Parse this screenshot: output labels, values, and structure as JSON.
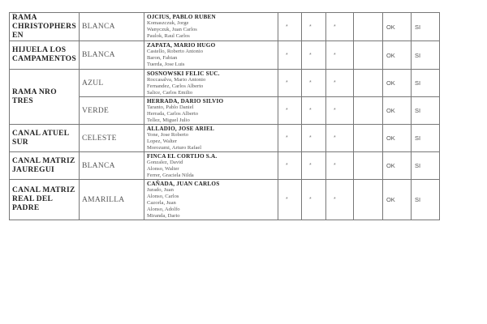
{
  "rows": [
    {
      "canal": "RAMA CHRISTOPHERS EN",
      "color": "BLANCA",
      "names": [
        "OJCIUS, PABLO RUBEN",
        "Komaszczuk, Jorge",
        "Wanyczuk, Juan Carlos",
        "Paulok, Raul Carlos"
      ],
      "marks": [
        "*",
        "*",
        "*"
      ],
      "ok": "OK",
      "si": "SI"
    },
    {
      "canal": "HIJUELA LOS CAMPAMENTOS",
      "color": "BLANCA",
      "names": [
        "ZAPATA, MARIO HUGO",
        "Castello, Roberto Antonio",
        "Baron, Fabian",
        "Tuerda, Jose Luis"
      ],
      "marks": [
        "*",
        "*",
        "*"
      ],
      "ok": "OK",
      "si": "SI"
    },
    {
      "canal": "RAMA NRO TRES",
      "color": "AZUL",
      "names": [
        "SOSNOWSKI FELIC SUC.",
        "Roccasalva, Mario Antonio",
        "Fernandez, Carlos Alberto",
        "Salice, Carlos Emilio"
      ],
      "marks": [
        "*",
        "*",
        "*"
      ],
      "ok": "OK",
      "si": "SI"
    },
    {
      "canal": "",
      "color": "VERDE",
      "names": [
        "HERRADA, DARIO SILVIO",
        "Taranto, Pablo Daniel",
        "Herrada, Carlos Alberto",
        "Tellez, Miguel Julio"
      ],
      "marks": [
        "*",
        "*",
        "*"
      ],
      "ok": "OK",
      "si": "SI"
    },
    {
      "canal": "CANAL ATUEL SUR",
      "color": "CELESTE",
      "names": [
        "ALLADIO, JOSE ARIEL",
        "Yone, Jose Roberto",
        "Lopez, Walter",
        "Morozumi, Arturo Rafael"
      ],
      "marks": [
        "*",
        "*",
        "*"
      ],
      "ok": "OK",
      "si": "SI"
    },
    {
      "canal": "CANAL MATRIZ JAUREGUI",
      "color": "BLANCA",
      "names": [
        "FINCA EL CORTIJO S.A.",
        "Gonzalez, David",
        "Alonso, Walter",
        "Ferrer, Graciela Nilda"
      ],
      "marks": [
        "*",
        "*",
        "*"
      ],
      "ok": "OK",
      "si": "SI"
    },
    {
      "canal": "CANAL MATRIZ REAL DEL PADRE",
      "color": "AMARILLA",
      "names": [
        "CAÑADA, JUAN CARLOS",
        "Jurado, Juan",
        "Alonso, Carlos",
        "Cazorla, Juan",
        "Alonso, Adolfo",
        "Miranda, Dario"
      ],
      "marks": [
        "*",
        "*",
        "*"
      ],
      "ok": "OK",
      "si": "SI"
    }
  ]
}
